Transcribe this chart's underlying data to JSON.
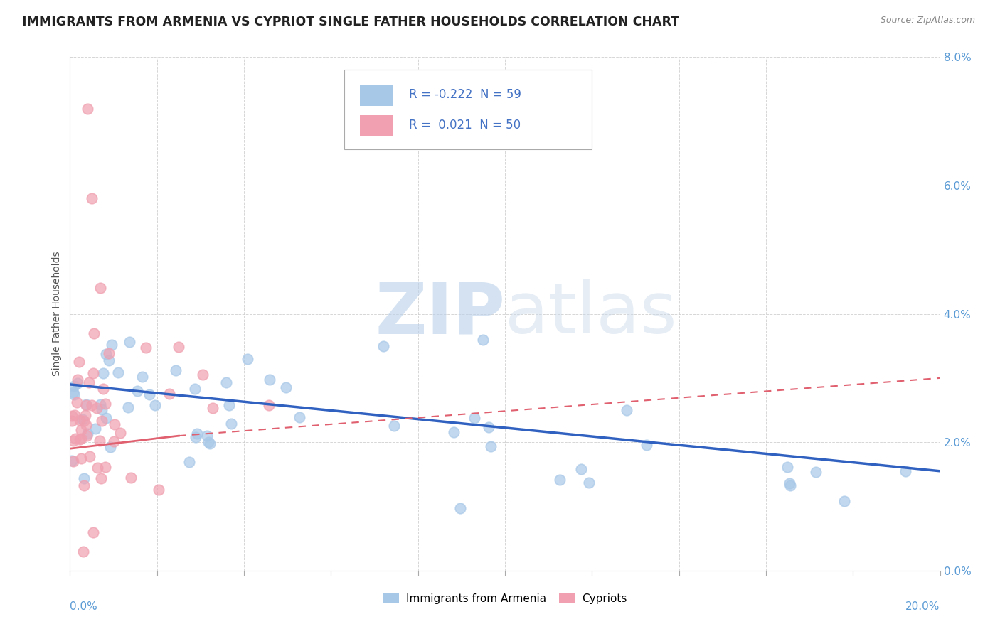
{
  "title": "IMMIGRANTS FROM ARMENIA VS CYPRIOT SINGLE FATHER HOUSEHOLDS CORRELATION CHART",
  "source": "Source: ZipAtlas.com",
  "ylabel": "Single Father Households",
  "ylabel_right_vals": [
    0.0,
    2.0,
    4.0,
    6.0,
    8.0
  ],
  "legend_labels_bottom": [
    "Immigrants from Armenia",
    "Cypriots"
  ],
  "watermark_zip": "ZIP",
  "watermark_atlas": "atlas",
  "dot_color_blue": "#a8c8e8",
  "dot_color_pink": "#f0a0b0",
  "line_color_blue": "#3060c0",
  "line_color_pink": "#e06070",
  "background_color": "#ffffff",
  "grid_color": "#cccccc",
  "xmin": 0.0,
  "xmax": 20.0,
  "ymin": 0.0,
  "ymax": 8.0,
  "title_fontsize": 13,
  "axis_fontsize": 10,
  "blue_line_y_start": 2.9,
  "blue_line_y_end": 1.55,
  "pink_solid_x_end": 2.5,
  "pink_solid_y_start": 1.9,
  "pink_solid_y_end": 2.1,
  "pink_dash_x_start": 2.5,
  "pink_dash_x_end": 20.0,
  "pink_dash_y_start": 2.1,
  "pink_dash_y_end": 3.0
}
